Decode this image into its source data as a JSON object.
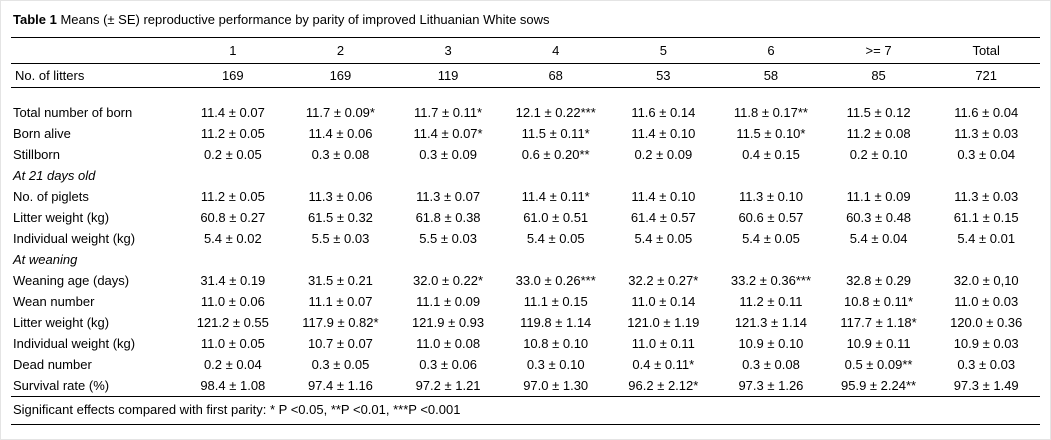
{
  "title": {
    "label": "Table 1",
    "text": "Means (± SE) reproductive performance by parity of improved Lithuanian White sows"
  },
  "table": {
    "columns": [
      "1",
      "2",
      "3",
      "4",
      "5",
      "6",
      ">= 7",
      "Total"
    ],
    "rows": [
      {
        "type": "data",
        "label": "No. of litters",
        "values": [
          "169",
          "169",
          "119",
          "68",
          "53",
          "58",
          "85",
          "721"
        ]
      },
      {
        "type": "spacer"
      },
      {
        "type": "data",
        "label": "Total number of born",
        "values": [
          "11.4 ± 0.07",
          "11.7 ± 0.09*",
          "11.7 ± 0.11*",
          "12.1 ± 0.22***",
          "11.6 ± 0.14",
          "11.8 ± 0.17**",
          "11.5 ± 0.12",
          "11.6 ± 0.04"
        ]
      },
      {
        "type": "data",
        "label": "Born alive",
        "values": [
          "11.2 ± 0.05",
          "11.4 ± 0.06",
          "11.4 ± 0.07*",
          "11.5 ± 0.11*",
          "11.4 ± 0.10",
          "11.5 ± 0.10*",
          "11.2 ± 0.08",
          "11.3 ± 0.03"
        ]
      },
      {
        "type": "data",
        "label": "Stillborn",
        "values": [
          "0.2 ± 0.05",
          "0.3 ± 0.08",
          "0.3 ± 0.09",
          "0.6 ± 0.20**",
          "0.2 ± 0.09",
          "0.4 ± 0.15",
          "0.2 ± 0.10",
          "0.3 ± 0.04"
        ]
      },
      {
        "type": "section",
        "label": "At 21 days old"
      },
      {
        "type": "data",
        "label": "No. of piglets",
        "values": [
          "11.2 ± 0.05",
          "11.3 ± 0.06",
          "11.3 ± 0.07",
          "11.4 ± 0.11*",
          "11.4 ± 0.10",
          "11.3 ± 0.10",
          "11.1 ± 0.09",
          "11.3 ± 0.03"
        ]
      },
      {
        "type": "data",
        "label": "Litter weight (kg)",
        "values": [
          "60.8 ± 0.27",
          "61.5 ± 0.32",
          "61.8 ± 0.38",
          "61.0 ± 0.51",
          "61.4 ± 0.57",
          "60.6 ± 0.57",
          "60.3 ± 0.48",
          "61.1 ± 0.15"
        ]
      },
      {
        "type": "data",
        "label": "Individual weight (kg)",
        "values": [
          "5.4 ± 0.02",
          "5.5 ± 0.03",
          "5.5 ± 0.03",
          "5.4 ± 0.05",
          "5.4 ± 0.05",
          "5.4 ± 0.05",
          "5.4 ± 0.04",
          "5.4 ± 0.01"
        ]
      },
      {
        "type": "section",
        "label": "At weaning"
      },
      {
        "type": "data",
        "label": "Weaning age (days)",
        "values": [
          "31.4 ± 0.19",
          "31.5 ± 0.21",
          "32.0 ± 0.22*",
          "33.0 ± 0.26***",
          "32.2 ± 0.27*",
          "33.2 ± 0.36***",
          "32.8 ± 0.29",
          "32.0 ± 0,10"
        ]
      },
      {
        "type": "data",
        "label": "Wean number",
        "values": [
          "11.0 ± 0.06",
          "11.1 ± 0.07",
          "11.1 ± 0.09",
          "11.1 ± 0.15",
          "11.0 ± 0.14",
          "11.2 ± 0.11",
          "10.8 ± 0.11*",
          "11.0 ± 0.03"
        ]
      },
      {
        "type": "data",
        "label": "Litter weight (kg)",
        "values": [
          "121.2 ± 0.55",
          "117.9 ± 0.82*",
          "121.9 ± 0.93",
          "119.8 ± 1.14",
          "121.0 ± 1.19",
          "121.3 ± 1.14",
          "117.7 ± 1.18*",
          "120.0 ± 0.36"
        ]
      },
      {
        "type": "data",
        "label": "Individual weight (kg)",
        "values": [
          "11.0 ± 0.05",
          "10.7 ± 0.07",
          "11.0 ± 0.08",
          "10.8 ± 0.10",
          "11.0 ± 0.11",
          "10.9 ± 0.10",
          "10.9 ± 0.11",
          "10.9 ± 0.03"
        ]
      },
      {
        "type": "data",
        "label": "Dead number",
        "values": [
          "0.2 ± 0.04",
          "0.3 ± 0.05",
          "0.3 ± 0.06",
          "0.3 ± 0.10",
          "0.4 ± 0.11*",
          "0.3 ± 0.08",
          "0.5 ± 0.09**",
          "0.3 ± 0.03"
        ]
      },
      {
        "type": "data",
        "label": "Survival rate (%)",
        "values": [
          "98.4 ± 1.08",
          "97.4 ± 1.16",
          "97.2 ± 1.21",
          "97.0 ± 1.30",
          "96.2 ± 2.12*",
          "97.3 ± 1.26",
          "95.9 ± 2.24**",
          "97.3 ± 1.49"
        ]
      }
    ]
  },
  "footnote": {
    "text": "Significant effects compared with first parity: * P <0.05, **P <0.01, ***P <0.001"
  }
}
